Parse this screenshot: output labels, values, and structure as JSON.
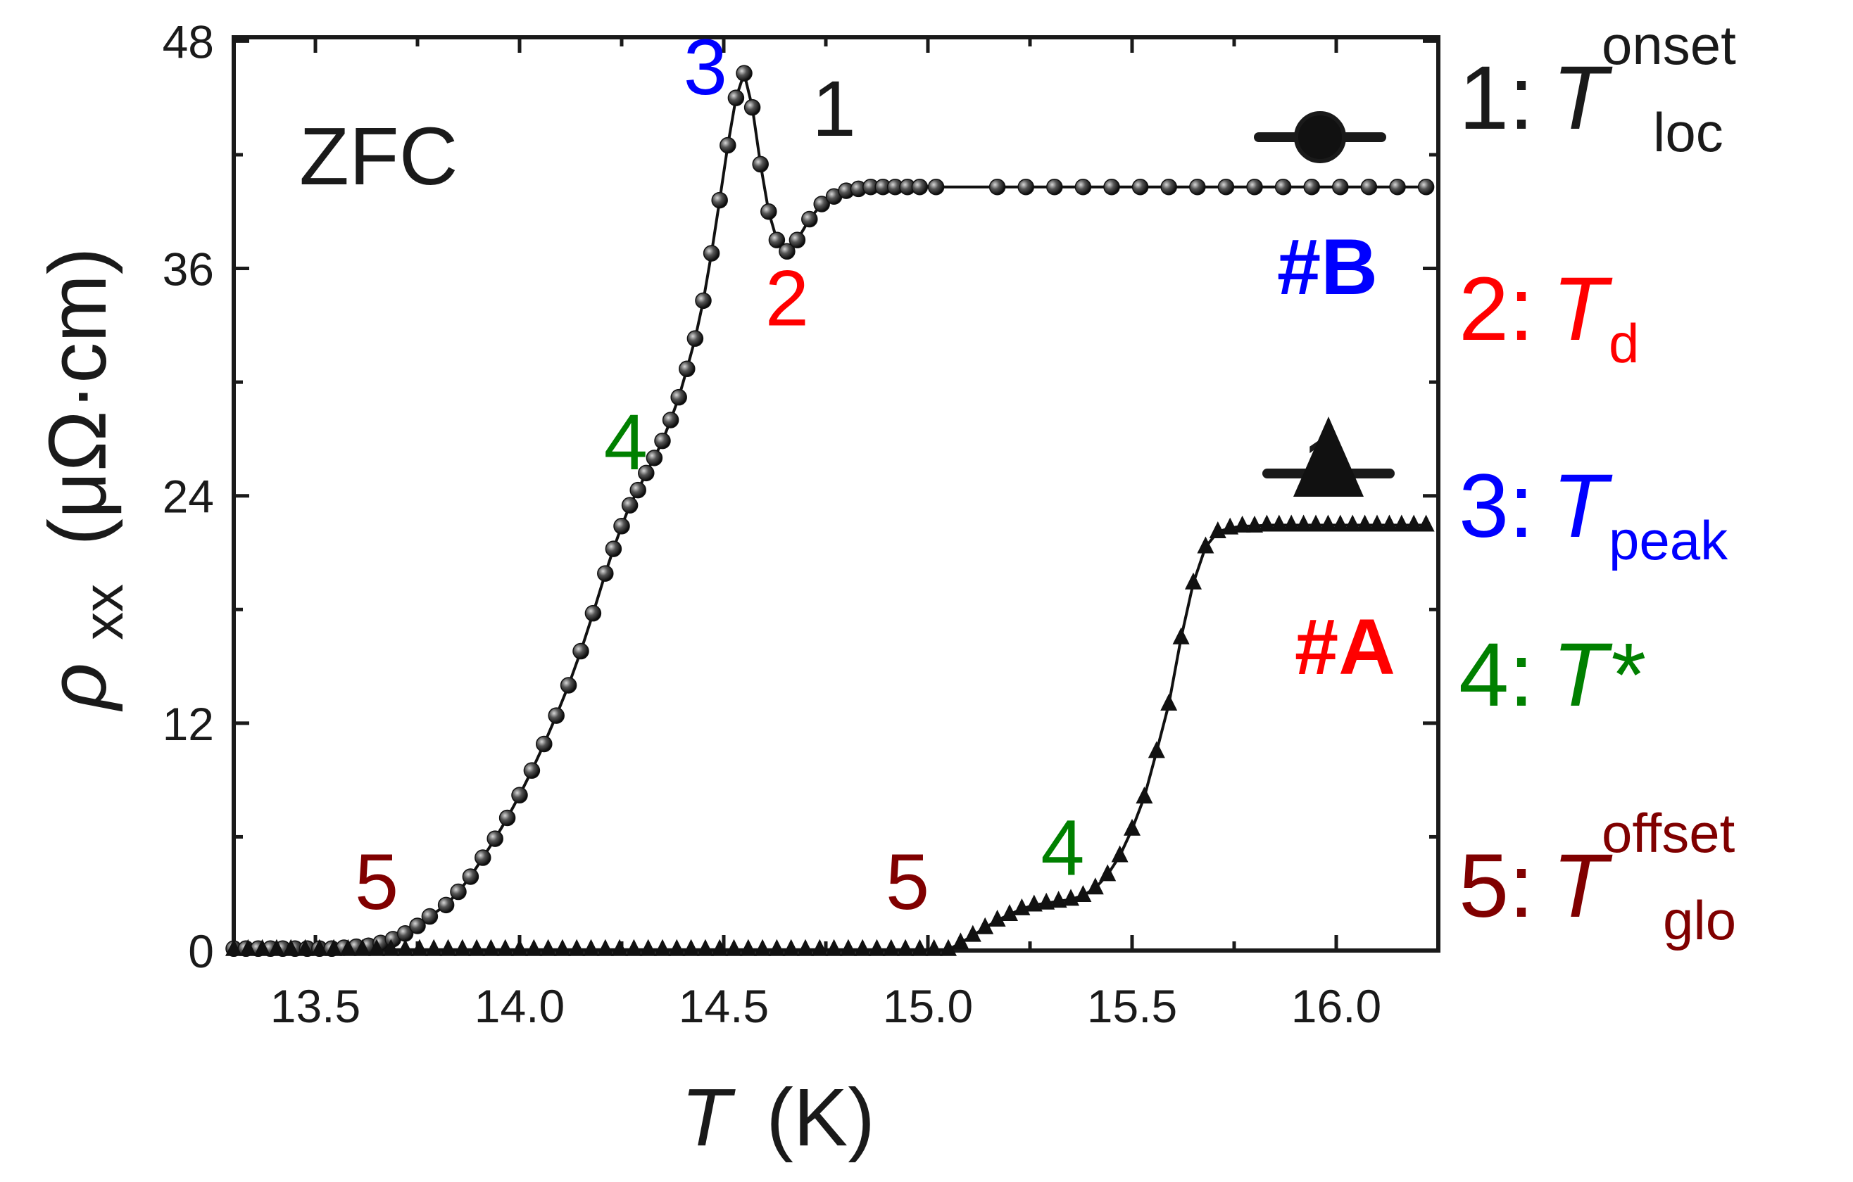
{
  "chart_data": {
    "type": "line",
    "xlabel": {
      "symbol": "T",
      "unit": "(K)"
    },
    "ylabel": {
      "rho": "ρ",
      "sub": "xx",
      "unit": "(μΩ·cm)"
    },
    "xlim": [
      13.3,
      16.25
    ],
    "ylim": [
      0,
      48.2
    ],
    "xticks": [
      13.5,
      14.0,
      14.5,
      15.0,
      15.5,
      16.0
    ],
    "xtick_labels": [
      "13.5",
      "14.0",
      "14.5",
      "15.0",
      "15.5",
      "16.0"
    ],
    "yticks": [
      0,
      12,
      24,
      36,
      48
    ],
    "ytick_labels": [
      "0",
      "12",
      "24",
      "36",
      "48"
    ],
    "annotation_zfc": "ZFC",
    "series": [
      {
        "name": "#B",
        "name_color": "#0000ff",
        "marker": "circle",
        "points": [
          [
            13.3,
            0.1
          ],
          [
            13.33,
            0.1
          ],
          [
            13.36,
            0.1
          ],
          [
            13.39,
            0.1
          ],
          [
            13.42,
            0.1
          ],
          [
            13.45,
            0.1
          ],
          [
            13.48,
            0.1
          ],
          [
            13.51,
            0.1
          ],
          [
            13.54,
            0.1
          ],
          [
            13.57,
            0.15
          ],
          [
            13.6,
            0.2
          ],
          [
            13.63,
            0.25
          ],
          [
            13.66,
            0.4
          ],
          [
            13.69,
            0.6
          ],
          [
            13.72,
            0.9
          ],
          [
            13.75,
            1.3
          ],
          [
            13.78,
            1.8
          ],
          [
            13.82,
            2.4
          ],
          [
            13.85,
            3.1
          ],
          [
            13.88,
            3.9
          ],
          [
            13.91,
            4.9
          ],
          [
            13.94,
            5.9
          ],
          [
            13.97,
            7.0
          ],
          [
            14.0,
            8.2
          ],
          [
            14.03,
            9.5
          ],
          [
            14.06,
            10.9
          ],
          [
            14.09,
            12.4
          ],
          [
            14.12,
            14.0
          ],
          [
            14.15,
            15.8
          ],
          [
            14.18,
            17.8
          ],
          [
            14.21,
            19.9
          ],
          [
            14.23,
            21.2
          ],
          [
            14.25,
            22.4
          ],
          [
            14.27,
            23.5
          ],
          [
            14.29,
            24.3
          ],
          [
            14.31,
            25.2
          ],
          [
            14.33,
            26.0
          ],
          [
            14.35,
            26.9
          ],
          [
            14.37,
            28.0
          ],
          [
            14.39,
            29.2
          ],
          [
            14.41,
            30.7
          ],
          [
            14.43,
            32.3
          ],
          [
            14.45,
            34.3
          ],
          [
            14.47,
            36.8
          ],
          [
            14.49,
            39.6
          ],
          [
            14.51,
            42.5
          ],
          [
            14.53,
            45.0
          ],
          [
            14.55,
            46.3
          ],
          [
            14.57,
            44.5
          ],
          [
            14.59,
            41.5
          ],
          [
            14.61,
            39.0
          ],
          [
            14.63,
            37.5
          ],
          [
            14.655,
            36.9
          ],
          [
            14.68,
            37.5
          ],
          [
            14.71,
            38.6
          ],
          [
            14.74,
            39.4
          ],
          [
            14.77,
            39.8
          ],
          [
            14.8,
            40.1
          ],
          [
            14.83,
            40.2
          ],
          [
            14.86,
            40.3
          ],
          [
            14.89,
            40.3
          ],
          [
            14.92,
            40.3
          ],
          [
            14.95,
            40.3
          ],
          [
            14.98,
            40.3
          ],
          [
            15.02,
            40.3
          ],
          [
            15.17,
            40.3
          ],
          [
            15.24,
            40.3
          ],
          [
            15.31,
            40.3
          ],
          [
            15.38,
            40.3
          ],
          [
            15.45,
            40.3
          ],
          [
            15.52,
            40.3
          ],
          [
            15.59,
            40.3
          ],
          [
            15.66,
            40.3
          ],
          [
            15.73,
            40.3
          ],
          [
            15.8,
            40.3
          ],
          [
            15.87,
            40.3
          ],
          [
            15.94,
            40.3
          ],
          [
            16.01,
            40.3
          ],
          [
            16.08,
            40.3
          ],
          [
            16.15,
            40.3
          ],
          [
            16.22,
            40.3
          ]
        ]
      },
      {
        "name": "#A",
        "name_color": "#ff0000",
        "marker": "triangle",
        "points": [
          [
            13.3,
            0.05
          ],
          [
            13.335,
            0.05
          ],
          [
            13.37,
            0.05
          ],
          [
            13.405,
            0.05
          ],
          [
            13.44,
            0.05
          ],
          [
            13.475,
            0.05
          ],
          [
            13.51,
            0.05
          ],
          [
            13.545,
            0.05
          ],
          [
            13.58,
            0.05
          ],
          [
            13.615,
            0.05
          ],
          [
            13.65,
            0.05
          ],
          [
            13.685,
            0.05
          ],
          [
            13.72,
            0.05
          ],
          [
            13.755,
            0.05
          ],
          [
            13.79,
            0.05
          ],
          [
            13.825,
            0.05
          ],
          [
            13.86,
            0.05
          ],
          [
            13.895,
            0.05
          ],
          [
            13.93,
            0.05
          ],
          [
            13.965,
            0.05
          ],
          [
            14.0,
            0.05
          ],
          [
            14.035,
            0.05
          ],
          [
            14.07,
            0.05
          ],
          [
            14.105,
            0.05
          ],
          [
            14.14,
            0.05
          ],
          [
            14.175,
            0.05
          ],
          [
            14.21,
            0.05
          ],
          [
            14.245,
            0.05
          ],
          [
            14.28,
            0.05
          ],
          [
            14.315,
            0.05
          ],
          [
            14.35,
            0.05
          ],
          [
            14.385,
            0.05
          ],
          [
            14.42,
            0.05
          ],
          [
            14.455,
            0.05
          ],
          [
            14.49,
            0.05
          ],
          [
            14.525,
            0.05
          ],
          [
            14.56,
            0.05
          ],
          [
            14.595,
            0.05
          ],
          [
            14.63,
            0.05
          ],
          [
            14.665,
            0.05
          ],
          [
            14.7,
            0.05
          ],
          [
            14.735,
            0.05
          ],
          [
            14.77,
            0.05
          ],
          [
            14.805,
            0.05
          ],
          [
            14.84,
            0.05
          ],
          [
            14.875,
            0.05
          ],
          [
            14.91,
            0.05
          ],
          [
            14.945,
            0.05
          ],
          [
            14.98,
            0.05
          ],
          [
            15.015,
            0.05
          ],
          [
            15.05,
            0.05
          ],
          [
            15.08,
            0.4
          ],
          [
            15.11,
            0.8
          ],
          [
            15.14,
            1.2
          ],
          [
            15.17,
            1.6
          ],
          [
            15.2,
            1.9
          ],
          [
            15.23,
            2.2
          ],
          [
            15.26,
            2.4
          ],
          [
            15.29,
            2.5
          ],
          [
            15.32,
            2.6
          ],
          [
            15.35,
            2.7
          ],
          [
            15.38,
            2.9
          ],
          [
            15.41,
            3.3
          ],
          [
            15.44,
            4.0
          ],
          [
            15.47,
            5.0
          ],
          [
            15.5,
            6.4
          ],
          [
            15.53,
            8.1
          ],
          [
            15.56,
            10.5
          ],
          [
            15.59,
            13.0
          ],
          [
            15.62,
            16.5
          ],
          [
            15.65,
            19.4
          ],
          [
            15.68,
            21.3
          ],
          [
            15.71,
            22.1
          ],
          [
            15.74,
            22.3
          ],
          [
            15.77,
            22.4
          ],
          [
            15.8,
            22.4
          ],
          [
            15.83,
            22.45
          ],
          [
            15.86,
            22.45
          ],
          [
            15.89,
            22.45
          ],
          [
            15.92,
            22.45
          ],
          [
            15.95,
            22.45
          ],
          [
            15.98,
            22.45
          ],
          [
            16.01,
            22.45
          ],
          [
            16.04,
            22.45
          ],
          [
            16.07,
            22.45
          ],
          [
            16.1,
            22.45
          ],
          [
            16.13,
            22.45
          ],
          [
            16.16,
            22.45
          ],
          [
            16.19,
            22.45
          ],
          [
            16.22,
            22.45
          ]
        ]
      }
    ],
    "point_labels": [
      {
        "text": "3",
        "color": "#0000ff",
        "series": "#B",
        "x": 14.455,
        "y": 45.2
      },
      {
        "text": "1",
        "color": "#1a1a1a",
        "series": "#B",
        "x": 14.77,
        "y": 43.0
      },
      {
        "text": "2",
        "color": "#ff0000",
        "series": "#B",
        "x": 14.655,
        "y": 33.0
      },
      {
        "text": "4",
        "color": "#008000",
        "series": "#B",
        "x": 14.26,
        "y": 25.4
      },
      {
        "text": "5",
        "color": "#800000",
        "series": "#B",
        "x": 13.65,
        "y": 2.2
      },
      {
        "text": "1",
        "color": "#1a1a1a",
        "series": "#A",
        "x": 15.97,
        "y": 24.2
      },
      {
        "text": "4",
        "color": "#008000",
        "series": "#A",
        "x": 15.33,
        "y": 4.0
      },
      {
        "text": "5",
        "color": "#800000",
        "series": "#A",
        "x": 14.95,
        "y": 2.2
      }
    ],
    "legend": {
      "placement": "right",
      "entries": [
        {
          "num": "1:",
          "sym": "T",
          "sub": "loc",
          "sup": "onset",
          "color": "#1a1a1a"
        },
        {
          "num": "2:",
          "sym": "T",
          "sub": "d",
          "sup": "",
          "color": "#ff0000"
        },
        {
          "num": "3:",
          "sym": "T",
          "sub": "peak",
          "sup": "",
          "color": "#0000ff"
        },
        {
          "num": "4:",
          "sym": "T*",
          "sub": "",
          "sup": "",
          "color": "#008000"
        },
        {
          "num": "5:",
          "sym": "T",
          "sub": "glo",
          "sup": "offset",
          "color": "#800000"
        }
      ]
    }
  }
}
